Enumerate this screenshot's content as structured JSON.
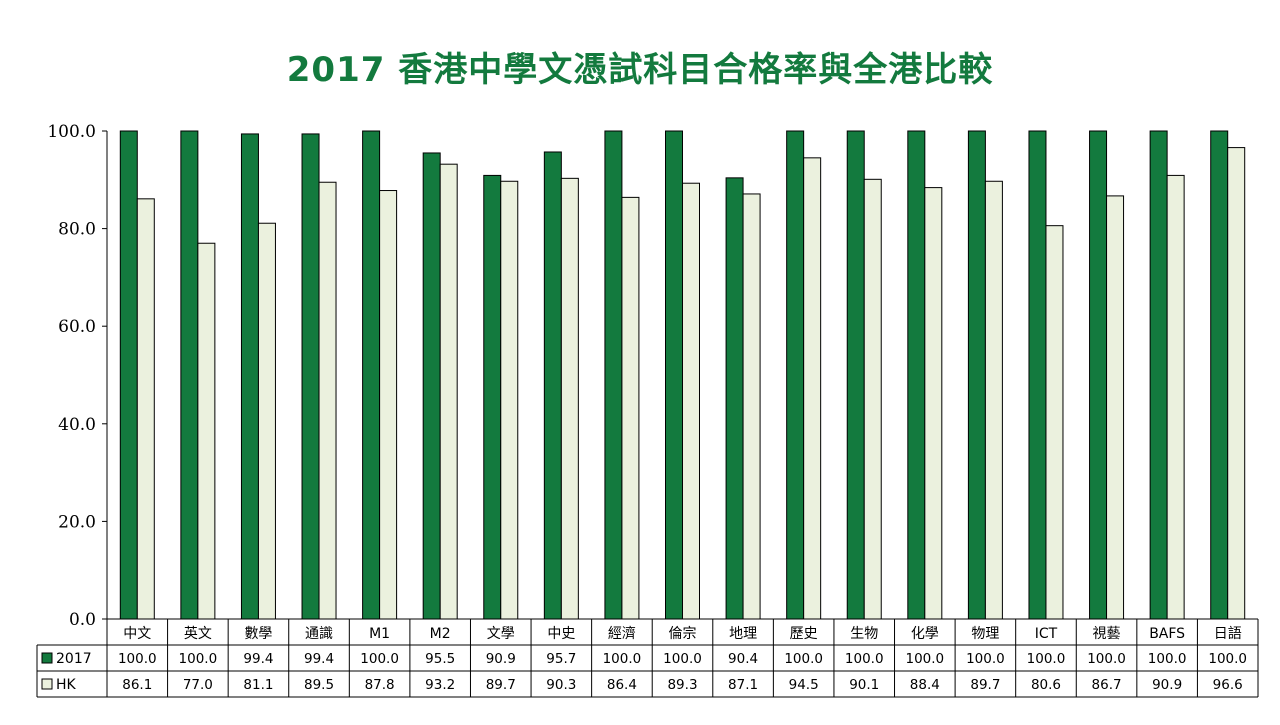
{
  "chart_data": {
    "type": "bar",
    "title": "2017 香港中學文憑試科目合格率與全港比較",
    "categories": [
      "中文",
      "英文",
      "數學",
      "通識",
      "M1",
      "M2",
      "文學",
      "中史",
      "經濟",
      "倫宗",
      "地理",
      "歷史",
      "生物",
      "化學",
      "物理",
      "ICT",
      "視藝",
      "BAFS",
      "日語"
    ],
    "series": [
      {
        "name": "2017",
        "color": "#137a3e",
        "values": [
          100.0,
          100.0,
          99.4,
          99.4,
          100.0,
          95.5,
          90.9,
          95.7,
          100.0,
          100.0,
          90.4,
          100.0,
          100.0,
          100.0,
          100.0,
          100.0,
          100.0,
          100.0,
          100.0
        ]
      },
      {
        "name": "HK",
        "color": "#ebf1de",
        "values": [
          86.1,
          77.0,
          81.1,
          89.5,
          87.8,
          93.2,
          89.7,
          90.3,
          86.4,
          89.3,
          87.1,
          94.5,
          90.1,
          88.4,
          89.7,
          80.6,
          86.7,
          90.9,
          96.6
        ]
      }
    ],
    "yticks": [
      "0.0",
      "20.0",
      "40.0",
      "60.0",
      "80.0",
      "100.0"
    ],
    "ylim": [
      0,
      100
    ],
    "legend": "data-table",
    "grid": false
  }
}
